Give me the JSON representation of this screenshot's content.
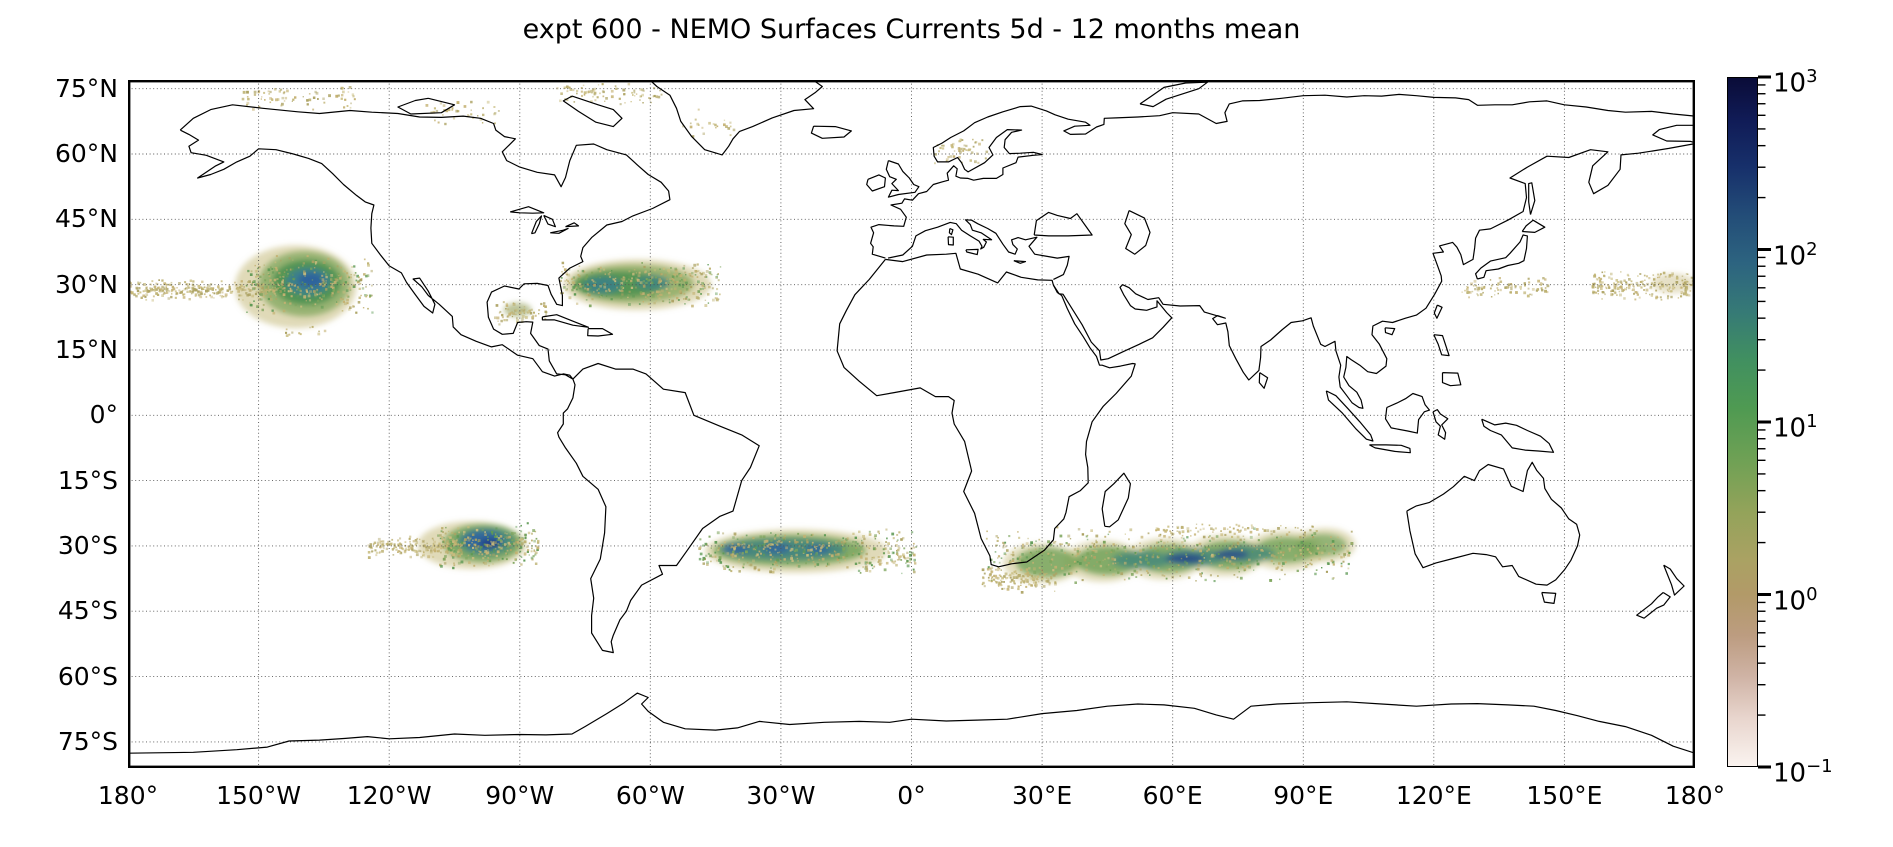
{
  "chart_data": {
    "type": "heatmap",
    "title": "expt 600 - NEMO Surfaces Currents 5d - 12 months mean",
    "subtitle": "",
    "projection": "PlateCarree (equirectangular world map)",
    "grid": "dotted graticule every 30 deg lon / 15 deg lat",
    "legend_position": "vertical colorbar at right",
    "lon_range": [
      -180,
      180
    ],
    "lat_range": [
      -81,
      77
    ],
    "lon_ticks": [
      -180,
      -150,
      -120,
      -90,
      -60,
      -30,
      0,
      30,
      60,
      90,
      120,
      150,
      180
    ],
    "x_tick_labels": [
      "180°",
      "150°W",
      "120°W",
      "90°W",
      "60°W",
      "30°W",
      "0°",
      "30°E",
      "60°E",
      "90°E",
      "120°E",
      "150°E",
      "180°"
    ],
    "lat_ticks": [
      75,
      60,
      45,
      30,
      15,
      0,
      -15,
      -30,
      -45,
      -60,
      -75
    ],
    "y_tick_labels": [
      "75°N",
      "60°N",
      "45°N",
      "30°N",
      "15°N",
      "0°",
      "15°S",
      "30°S",
      "45°S",
      "60°S",
      "75°S"
    ],
    "colorbar": {
      "scale": "log",
      "range": [
        0.1,
        1000
      ],
      "tick_mantissa": "10",
      "tick_exponents": [
        "3",
        "2",
        "1",
        "0",
        "−1"
      ],
      "colormap": "gist_earth reversed (white-pink-tan-olive-green-teal-navy)",
      "gradient_stops": [
        [
          0,
          "#0a0c38"
        ],
        [
          6,
          "#101b56"
        ],
        [
          13,
          "#17306b"
        ],
        [
          20,
          "#234d78"
        ],
        [
          27,
          "#2d6480"
        ],
        [
          34,
          "#367a76"
        ],
        [
          41,
          "#419060"
        ],
        [
          48,
          "#4f9a52"
        ],
        [
          56,
          "#71a155"
        ],
        [
          63,
          "#93a35a"
        ],
        [
          70,
          "#aaa263"
        ],
        [
          75,
          "#b29a68"
        ],
        [
          81,
          "#bc9c80"
        ],
        [
          87,
          "#cfb3a5"
        ],
        [
          93,
          "#e8d5cd"
        ],
        [
          100,
          "#faf3ef"
        ]
      ]
    },
    "regions": [
      {
        "name": "North Pacific subtropical gyre",
        "lon_center": -139,
        "lat_center": 31,
        "lon_extent": [
          -180,
          -126
        ],
        "lat_extent": [
          23,
          37
        ],
        "peak_density": 300
      },
      {
        "name": "North Atlantic subtropical band",
        "lon_center": -63,
        "lat_center": 30,
        "lon_extent": [
          -81,
          -44
        ],
        "lat_extent": [
          25,
          36
        ],
        "peak_density": 100
      },
      {
        "name": "Gulf of Mexico patch",
        "lon_center": -90,
        "lat_center": 24,
        "peak_density": 5
      },
      {
        "name": "Northwest Pacific sparse band near 180E",
        "lon_center": 170,
        "lat_center": 30,
        "lon_extent": [
          126,
          180
        ],
        "lat_extent": [
          26,
          34
        ],
        "peak_density": 1
      },
      {
        "name": "Southeast Pacific gyre",
        "lon_center": -98,
        "lat_center": -29,
        "lon_extent": [
          -125,
          -86
        ],
        "lat_extent": [
          -35,
          -24
        ],
        "peak_density": 600
      },
      {
        "name": "South Atlantic band",
        "lon_center": -28,
        "lat_center": -31,
        "lon_extent": [
          -49,
          1
        ],
        "lat_extent": [
          -37,
          -25
        ],
        "peak_density": 200
      },
      {
        "name": "South Indian band",
        "lon_center": 63,
        "lat_center": -32.5,
        "lon_extent": [
          17,
          101
        ],
        "lat_extent": [
          -40,
          -24
        ],
        "peak_density": 400
      },
      {
        "name": "Arctic sparse speckles (Beaufort, Canadian Arctic, Baffin, Norway coast)",
        "peak_density": 1
      }
    ],
    "render": {
      "blobs": [
        {
          "name": "north-pacific",
          "layers": [
            [
              -141.5,
              29.5,
              14,
              9.5,
              "#c2b672",
              0.5
            ],
            [
              -139.5,
              30.2,
              10.5,
              7.5,
              "#7fa65c",
              0.75
            ],
            [
              -139,
              30.5,
              7.8,
              5.2,
              "#4a9150",
              0.9
            ],
            [
              -138.6,
              30.7,
              5.2,
              3.2,
              "#3a808f",
              0.9
            ],
            [
              -138,
              31,
              3,
              1.7,
              "#2b5fa0",
              0.9
            ]
          ]
        },
        {
          "name": "north-atlantic",
          "layers": [
            [
              -63,
              30,
              17,
              5.8,
              "#c2b672",
              0.5
            ],
            [
              -64,
              30.2,
              14,
              4.4,
              "#8aa95e",
              0.8
            ],
            [
              -67,
              30.1,
              10.5,
              3,
              "#4a9150",
              0.85
            ],
            [
              -71,
              29.9,
              4.5,
              1.9,
              "#3a808f",
              0.8
            ],
            [
              -59.5,
              30.4,
              4,
              1.7,
              "#3a808f",
              0.65
            ]
          ]
        },
        {
          "name": "gulf-of-mexico",
          "layers": [
            [
              -90.5,
              24.2,
              3.2,
              1.6,
              "#9aa561",
              0.65
            ]
          ]
        },
        {
          "name": "nw-pacific",
          "layers": [
            [
              175,
              30.3,
              5,
              2.3,
              "#c0b272",
              0.4
            ]
          ]
        },
        {
          "name": "south-pacific",
          "layers": [
            [
              -101,
              -29.8,
              12.5,
              5.5,
              "#c2b672",
              0.5
            ],
            [
              -98.5,
              -29.4,
              9,
              4.4,
              "#72a258",
              0.85
            ],
            [
              -97.8,
              -29,
              6.6,
              3.2,
              "#47897b",
              0.9
            ],
            [
              -98.3,
              -28.8,
              4.6,
              2.2,
              "#2f64a0",
              0.92
            ],
            [
              -96.9,
              -29.5,
              2.4,
              1.1,
              "#243e86",
              0.9
            ]
          ]
        },
        {
          "name": "south-atlantic",
          "layers": [
            [
              -26.5,
              -31.2,
              21,
              5,
              "#c2b672",
              0.5
            ],
            [
              -28,
              -31,
              17.5,
              3.6,
              "#72a258",
              0.85
            ],
            [
              -29,
              -30.8,
              14,
              2.4,
              "#418580",
              0.88
            ],
            [
              -40.5,
              -30.7,
              3.2,
              1.2,
              "#2f64a0",
              0.8
            ],
            [
              -31,
              -30.6,
              3.2,
              1.2,
              "#2f64a0",
              0.8
            ],
            [
              -21.5,
              -30.8,
              2.8,
              1.1,
              "#2f64a0",
              0.75
            ]
          ]
        },
        {
          "name": "south-indian",
          "layers": [
            [
              30,
              -34,
              9,
              4.6,
              "#c2b672",
              0.45
            ],
            [
              44,
              -33.5,
              9,
              4.8,
              "#c2b672",
              0.45
            ],
            [
              58,
              -33,
              9,
              4.8,
              "#c2b672",
              0.45
            ],
            [
              72,
              -32.2,
              9,
              4.8,
              "#c2b672",
              0.45
            ],
            [
              86,
              -31,
              9,
              4.6,
              "#c2b672",
              0.45
            ],
            [
              95,
              -29.8,
              7,
              4,
              "#c2b672",
              0.45
            ],
            [
              31,
              -33.8,
              7,
              3.4,
              "#72a258",
              0.8
            ],
            [
              45,
              -33.4,
              7.5,
              3.3,
              "#72a258",
              0.85
            ],
            [
              59,
              -32.9,
              7.5,
              3.3,
              "#72a258",
              0.85
            ],
            [
              73,
              -32.1,
              7.5,
              3.3,
              "#72a258",
              0.85
            ],
            [
              86,
              -30.9,
              7,
              3,
              "#72a258",
              0.8
            ],
            [
              94.5,
              -29.8,
              5.5,
              2.6,
              "#72a258",
              0.7
            ],
            [
              53,
              -33.2,
              7,
              2,
              "#47897b",
              0.85
            ],
            [
              65,
              -32.7,
              7,
              2,
              "#47897b",
              0.85
            ],
            [
              77,
              -31.8,
              6.5,
              1.9,
              "#47897b",
              0.8
            ],
            [
              63,
              -32.9,
              4.5,
              1.1,
              "#27488b",
              0.9
            ],
            [
              73.5,
              -32,
              4,
              1,
              "#27488b",
              0.85
            ]
          ]
        }
      ],
      "speckles": [
        [
          -180,
          -146,
          26.5,
          31.5,
          280,
          "tan"
        ],
        [
          -153,
          -124,
          23,
          37,
          320,
          "mix"
        ],
        [
          -146,
          -135,
          17.5,
          21.5,
          12,
          "tan"
        ],
        [
          -81,
          -44,
          25,
          35.5,
          340,
          "mix"
        ],
        [
          -96,
          -84,
          21,
          26.5,
          70,
          "tan"
        ],
        [
          126,
          146,
          27,
          32,
          90,
          "tan"
        ],
        [
          156,
          180,
          26.5,
          33.5,
          230,
          "tan"
        ],
        [
          -125,
          -105,
          -32.5,
          -27.5,
          180,
          "tan"
        ],
        [
          -109,
          -86,
          -35,
          -24.5,
          260,
          "mix"
        ],
        [
          -49,
          1,
          -36.5,
          -25.5,
          400,
          "mix"
        ],
        [
          17,
          101,
          -38.5,
          -25,
          520,
          "mix"
        ],
        [
          16,
          33,
          -40.5,
          -34,
          150,
          "tan"
        ],
        [
          55,
          93,
          -27.5,
          -24.5,
          70,
          "tan"
        ],
        [
          -154,
          -128,
          70,
          76.5,
          70,
          "tan"
        ],
        [
          -112,
          -95,
          67,
          73,
          40,
          "tan"
        ],
        [
          -82,
          -57,
          71.5,
          76.5,
          80,
          "tan"
        ],
        [
          -54,
          -41,
          63,
          71,
          25,
          "tan"
        ],
        [
          5,
          17,
          57.5,
          64.5,
          50,
          "tan"
        ]
      ],
      "palettes": {
        "tan": [
          "#c8bc7e",
          "#bcb070",
          "#aca263",
          "#c4b172"
        ],
        "mix": [
          "#c8bc7e",
          "#bcb070",
          "#aca263",
          "#c4b172",
          "#7da45c",
          "#5f9a55"
        ]
      }
    }
  }
}
